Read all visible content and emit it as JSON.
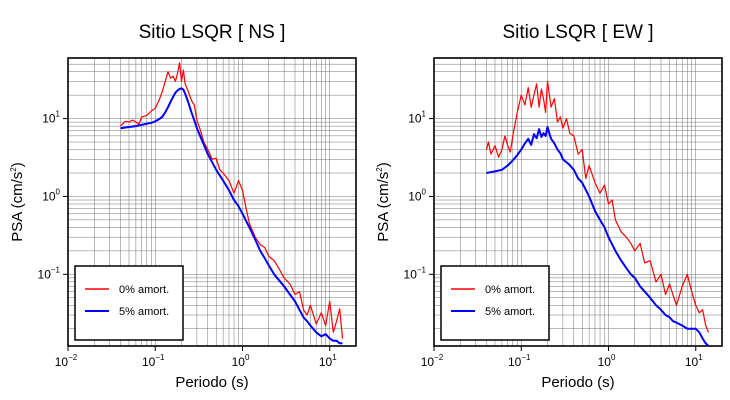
{
  "colors": {
    "series_0": "#ff0000",
    "series_5": "#0000ff",
    "grid": "#000000"
  },
  "chart_data": [
    {
      "type": "line",
      "title": "Sitio LSQR [ NS ]",
      "xlabel": "Periodo (s)",
      "ylabel_main": "PSA (cm/s",
      "ylabel_sup": "2",
      "ylabel_end": ")",
      "xscale": "log",
      "yscale": "log",
      "xlim": [
        0.01,
        20
      ],
      "ylim": [
        0.012,
        60
      ],
      "grid": true,
      "legend_position": "bottom-left",
      "x_ticks": [
        {
          "base": "10",
          "exp": "−2"
        },
        {
          "base": "10",
          "exp": "−1"
        },
        {
          "base": "10",
          "exp": "0"
        },
        {
          "base": "10",
          "exp": "1"
        }
      ],
      "y_ticks": [
        {
          "base": "10",
          "exp": "−1"
        },
        {
          "base": "10",
          "exp": "0"
        },
        {
          "base": "10",
          "exp": "1"
        }
      ],
      "series": [
        {
          "name": "0% amort.",
          "color": "#ff0000",
          "x": [
            0.04,
            0.045,
            0.05,
            0.055,
            0.06,
            0.065,
            0.07,
            0.08,
            0.09,
            0.1,
            0.11,
            0.12,
            0.13,
            0.14,
            0.15,
            0.16,
            0.17,
            0.18,
            0.19,
            0.2,
            0.21,
            0.22,
            0.24,
            0.26,
            0.28,
            0.3,
            0.33,
            0.36,
            0.4,
            0.45,
            0.5,
            0.55,
            0.6,
            0.7,
            0.8,
            0.9,
            1.0,
            1.1,
            1.2,
            1.4,
            1.6,
            1.8,
            2.0,
            2.3,
            2.6,
            3.0,
            3.5,
            4.0,
            4.5,
            5.0,
            5.5,
            6.0,
            7.0,
            8.0,
            9.0,
            10.0,
            11.0,
            12.0,
            13.0,
            14.0
          ],
          "y": [
            8.0,
            9.2,
            9.0,
            9.6,
            9.0,
            8.5,
            10.5,
            11.0,
            12.5,
            13.5,
            17.0,
            22.0,
            30.0,
            40.0,
            33.0,
            35.0,
            30.0,
            38.0,
            52.0,
            30.0,
            42.0,
            28.0,
            22.0,
            17.0,
            15.0,
            9.5,
            7.0,
            5.0,
            4.0,
            3.0,
            3.1,
            2.2,
            2.0,
            1.6,
            1.1,
            1.6,
            1.2,
            0.7,
            0.45,
            0.3,
            0.24,
            0.22,
            0.17,
            0.15,
            0.12,
            0.09,
            0.075,
            0.055,
            0.06,
            0.035,
            0.03,
            0.04,
            0.023,
            0.032,
            0.022,
            0.045,
            0.018,
            0.025,
            0.036,
            0.015
          ]
        },
        {
          "name": "5% amort.",
          "color": "#0000ff",
          "x": [
            0.04,
            0.05,
            0.06,
            0.07,
            0.08,
            0.09,
            0.1,
            0.11,
            0.12,
            0.13,
            0.14,
            0.15,
            0.16,
            0.17,
            0.18,
            0.19,
            0.2,
            0.21,
            0.22,
            0.24,
            0.26,
            0.28,
            0.3,
            0.35,
            0.4,
            0.5,
            0.6,
            0.7,
            0.8,
            0.9,
            1.0,
            1.2,
            1.4,
            1.6,
            1.8,
            2.0,
            2.3,
            2.6,
            3.0,
            3.5,
            4.0,
            4.5,
            5.0,
            5.5,
            6.0,
            7.0,
            8.0,
            9.0,
            10.0,
            11.0,
            12.0,
            13.0,
            14.0
          ],
          "y": [
            7.5,
            7.8,
            8.0,
            8.3,
            8.6,
            8.8,
            9.2,
            9.8,
            10.5,
            12.0,
            14.0,
            16.5,
            19.0,
            21.5,
            23.0,
            24.0,
            24.5,
            23.5,
            21.0,
            16.0,
            12.0,
            9.5,
            7.5,
            5.0,
            3.5,
            2.2,
            1.6,
            1.2,
            0.9,
            0.75,
            0.6,
            0.4,
            0.28,
            0.2,
            0.16,
            0.13,
            0.1,
            0.085,
            0.07,
            0.055,
            0.045,
            0.035,
            0.028,
            0.025,
            0.022,
            0.018,
            0.016,
            0.017,
            0.015,
            0.014,
            0.014,
            0.013,
            0.013
          ]
        }
      ]
    },
    {
      "type": "line",
      "title": "Sitio LSQR [ EW ]",
      "xlabel": "Periodo (s)",
      "ylabel_main": "PSA (cm/s",
      "ylabel_sup": "2",
      "ylabel_end": ")",
      "xscale": "log",
      "yscale": "log",
      "xlim": [
        0.01,
        20
      ],
      "ylim": [
        0.012,
        60
      ],
      "grid": true,
      "legend_position": "bottom-left",
      "x_ticks": [
        {
          "base": "10",
          "exp": "−2"
        },
        {
          "base": "10",
          "exp": "−1"
        },
        {
          "base": "10",
          "exp": "0"
        },
        {
          "base": "10",
          "exp": "1"
        }
      ],
      "y_ticks": [
        {
          "base": "10",
          "exp": "−1"
        },
        {
          "base": "10",
          "exp": "0"
        },
        {
          "base": "10",
          "exp": "1"
        }
      ],
      "series": [
        {
          "name": "0% amort.",
          "color": "#ff0000",
          "x": [
            0.04,
            0.042,
            0.045,
            0.05,
            0.055,
            0.06,
            0.065,
            0.07,
            0.075,
            0.08,
            0.09,
            0.1,
            0.11,
            0.12,
            0.13,
            0.14,
            0.15,
            0.16,
            0.17,
            0.18,
            0.19,
            0.2,
            0.21,
            0.22,
            0.24,
            0.26,
            0.28,
            0.3,
            0.33,
            0.36,
            0.4,
            0.45,
            0.5,
            0.55,
            0.6,
            0.7,
            0.8,
            0.9,
            1.0,
            1.1,
            1.2,
            1.4,
            1.6,
            1.8,
            2.0,
            2.3,
            2.6,
            3.0,
            3.5,
            4.0,
            4.5,
            5.0,
            6.0,
            7.0,
            8.0,
            9.0,
            10.0,
            11.0,
            12.0,
            13.0,
            14.0
          ],
          "y": [
            4.0,
            5.0,
            3.5,
            4.5,
            3.2,
            4.0,
            6.0,
            4.5,
            3.7,
            6.0,
            12.0,
            20.0,
            15.0,
            25.0,
            14.0,
            20.0,
            28.0,
            14.0,
            24.0,
            18.0,
            12.0,
            30.0,
            20.0,
            14.0,
            18.0,
            9.0,
            10.5,
            7.5,
            10.0,
            6.5,
            6.0,
            3.5,
            4.0,
            1.7,
            2.5,
            1.5,
            1.1,
            1.4,
            0.8,
            0.9,
            0.5,
            0.35,
            0.3,
            0.25,
            0.2,
            0.25,
            0.14,
            0.15,
            0.08,
            0.1,
            0.055,
            0.075,
            0.04,
            0.07,
            0.1,
            0.06,
            0.04,
            0.032,
            0.035,
            0.022,
            0.018
          ]
        },
        {
          "name": "5% amort.",
          "color": "#0000ff",
          "x": [
            0.04,
            0.05,
            0.06,
            0.07,
            0.08,
            0.09,
            0.1,
            0.11,
            0.12,
            0.13,
            0.14,
            0.15,
            0.16,
            0.17,
            0.18,
            0.19,
            0.2,
            0.21,
            0.22,
            0.24,
            0.26,
            0.28,
            0.3,
            0.35,
            0.4,
            0.45,
            0.5,
            0.6,
            0.7,
            0.8,
            0.9,
            1.0,
            1.2,
            1.4,
            1.6,
            1.8,
            2.0,
            2.3,
            2.6,
            3.0,
            3.5,
            4.0,
            4.5,
            5.0,
            5.5,
            6.0,
            7.0,
            8.0,
            9.0,
            10.0,
            11.0,
            12.0,
            13.0,
            14.0
          ],
          "y": [
            2.0,
            2.1,
            2.2,
            2.5,
            2.9,
            3.4,
            4.0,
            4.8,
            5.5,
            4.6,
            6.3,
            5.6,
            7.3,
            5.8,
            6.5,
            6.0,
            7.8,
            6.4,
            5.5,
            4.8,
            4.0,
            3.6,
            3.0,
            2.6,
            2.2,
            1.7,
            1.5,
            1.0,
            0.65,
            0.5,
            0.4,
            0.3,
            0.2,
            0.15,
            0.12,
            0.1,
            0.09,
            0.07,
            0.06,
            0.05,
            0.04,
            0.035,
            0.03,
            0.028,
            0.025,
            0.024,
            0.022,
            0.02,
            0.02,
            0.02,
            0.018,
            0.015,
            0.013,
            0.012
          ]
        }
      ]
    }
  ]
}
